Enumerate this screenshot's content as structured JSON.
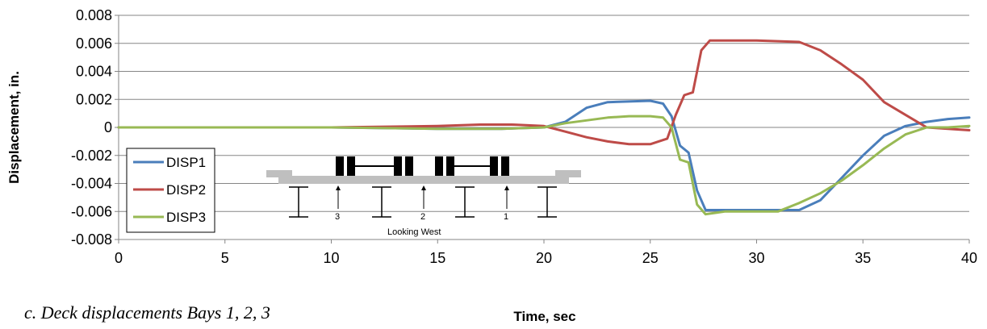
{
  "caption": "c. Deck displacements Bays 1, 2, 3",
  "chart_data": {
    "type": "line",
    "xlabel": "Time, sec",
    "ylabel": "Displacement, in.",
    "xlim": [
      0,
      40
    ],
    "ylim": [
      -0.008,
      0.008
    ],
    "x_ticks": [
      0,
      5,
      10,
      15,
      20,
      25,
      30,
      35,
      40
    ],
    "y_ticks": [
      0.008,
      0.006,
      0.004,
      0.002,
      0,
      -0.002,
      -0.004,
      -0.006,
      -0.008
    ],
    "y_tick_labels": [
      "0.008",
      "0.006",
      "0.004",
      "0.002",
      "0",
      "-0.002",
      "-0.004",
      "-0.006",
      "-0.008"
    ],
    "grid": "horizontal",
    "legend": "left",
    "series": [
      {
        "name": "DISP1",
        "color": "#4a7ebb",
        "points": [
          [
            0,
            0
          ],
          [
            5,
            0
          ],
          [
            10,
            0
          ],
          [
            15,
            -0.0001
          ],
          [
            18,
            -0.0001
          ],
          [
            20,
            0
          ],
          [
            21,
            0.0004
          ],
          [
            22,
            0.0014
          ],
          [
            23,
            0.0018
          ],
          [
            25,
            0.0019
          ],
          [
            25.6,
            0.0017
          ],
          [
            26,
            0.0008
          ],
          [
            26.4,
            -0.0013
          ],
          [
            26.8,
            -0.0018
          ],
          [
            27.2,
            -0.0045
          ],
          [
            27.6,
            -0.0059
          ],
          [
            29,
            -0.0059
          ],
          [
            31,
            -0.0059
          ],
          [
            32,
            -0.0059
          ],
          [
            33,
            -0.0052
          ],
          [
            34,
            -0.0036
          ],
          [
            35,
            -0.002
          ],
          [
            36,
            -0.0006
          ],
          [
            37,
            0.0001
          ],
          [
            38,
            0.0004
          ],
          [
            39,
            0.0006
          ],
          [
            40,
            0.0007
          ]
        ]
      },
      {
        "name": "DISP2",
        "color": "#be4b48",
        "points": [
          [
            0,
            0
          ],
          [
            5,
            0
          ],
          [
            10,
            0
          ],
          [
            15,
            0.0001
          ],
          [
            17,
            0.0002
          ],
          [
            18.5,
            0.0002
          ],
          [
            20,
            0.0001
          ],
          [
            21,
            -0.0003
          ],
          [
            22,
            -0.0007
          ],
          [
            23,
            -0.001
          ],
          [
            24,
            -0.0012
          ],
          [
            25,
            -0.0012
          ],
          [
            25.8,
            -0.0008
          ],
          [
            26.2,
            0.0009
          ],
          [
            26.6,
            0.0023
          ],
          [
            27,
            0.0025
          ],
          [
            27.4,
            0.0055
          ],
          [
            27.8,
            0.0062
          ],
          [
            30,
            0.0062
          ],
          [
            32,
            0.0061
          ],
          [
            33,
            0.0055
          ],
          [
            34,
            0.0045
          ],
          [
            35,
            0.0034
          ],
          [
            36,
            0.0018
          ],
          [
            37,
            0.0009
          ],
          [
            38,
            0
          ],
          [
            39,
            -0.0001
          ],
          [
            40,
            -0.0002
          ]
        ]
      },
      {
        "name": "DISP3",
        "color": "#98b954",
        "points": [
          [
            0,
            0
          ],
          [
            5,
            0
          ],
          [
            10,
            0
          ],
          [
            15,
            -0.0001
          ],
          [
            18,
            -0.0001
          ],
          [
            20,
            0
          ],
          [
            21,
            0.0003
          ],
          [
            22,
            0.0005
          ],
          [
            23,
            0.0007
          ],
          [
            24,
            0.0008
          ],
          [
            25,
            0.0008
          ],
          [
            25.6,
            0.0007
          ],
          [
            26,
            0
          ],
          [
            26.4,
            -0.0023
          ],
          [
            26.8,
            -0.0025
          ],
          [
            27.2,
            -0.0055
          ],
          [
            27.6,
            -0.0062
          ],
          [
            28.5,
            -0.006
          ],
          [
            30,
            -0.006
          ],
          [
            31,
            -0.006
          ],
          [
            32,
            -0.0054
          ],
          [
            33,
            -0.0047
          ],
          [
            34,
            -0.0038
          ],
          [
            35,
            -0.0027
          ],
          [
            36,
            -0.0015
          ],
          [
            37,
            -0.0005
          ],
          [
            38,
            0
          ],
          [
            39,
            0
          ],
          [
            40,
            0.0001
          ]
        ]
      }
    ]
  },
  "inset": {
    "bay_labels": [
      "3",
      "2",
      "1"
    ],
    "caption": "Looking West"
  }
}
